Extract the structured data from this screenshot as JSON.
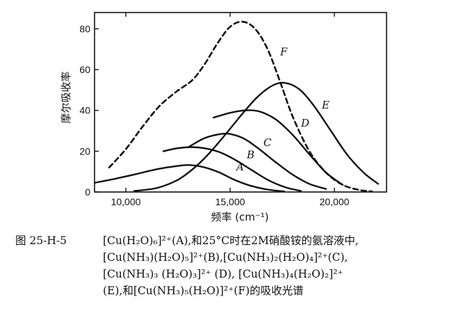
{
  "chart_data": {
    "type": "line",
    "ylabel": "摩尔吸收率",
    "xlabel": "频率 (cm⁻¹)",
    "xlim": [
      8500,
      22500
    ],
    "ylim": [
      0,
      88
    ],
    "xticks": [
      10000,
      15000,
      20000
    ],
    "xtick_labels": [
      "10,000",
      "15,000",
      "20,000"
    ],
    "yticks": [
      0,
      20,
      40,
      60,
      80
    ],
    "ytick_labels": [
      "0",
      "20",
      "40",
      "60",
      "80"
    ],
    "grid": false,
    "legend": "none",
    "series": [
      {
        "name": "A",
        "style": "solid",
        "x": [
          8500,
          9500,
          10500,
          11500,
          12500,
          13100,
          13800,
          14500,
          15200,
          16000,
          16800,
          17600
        ],
        "y": [
          4.5,
          6.5,
          8.8,
          11.2,
          12.8,
          13.2,
          12.0,
          9.5,
          6.0,
          3.0,
          1.2,
          0.3
        ],
        "label_x": 15300,
        "label_y": 10.5
      },
      {
        "name": "B",
        "style": "solid",
        "x": [
          11800,
          12500,
          13200,
          13900,
          14500,
          15200,
          16000,
          16800,
          17600,
          18400
        ],
        "y": [
          20.0,
          21.5,
          22.0,
          21.2,
          19.5,
          16.0,
          11.0,
          6.0,
          2.5,
          0.5
        ],
        "label_x": 15800,
        "label_y": 16.5
      },
      {
        "name": "C",
        "style": "solid",
        "x": [
          13000,
          13800,
          14600,
          15100,
          15700,
          16400,
          17200,
          18000,
          18800,
          19600
        ],
        "y": [
          22.0,
          26.5,
          28.5,
          28.2,
          26.0,
          21.0,
          14.5,
          8.5,
          4.0,
          1.5
        ],
        "label_x": 16600,
        "label_y": 22.5
      },
      {
        "name": "D",
        "style": "solid",
        "x": [
          14200,
          15000,
          15700,
          16400,
          17200,
          18000,
          18800,
          19600,
          20400
        ],
        "y": [
          36.5,
          38.8,
          40.0,
          39.5,
          35.5,
          28.0,
          18.5,
          9.5,
          3.5
        ],
        "label_x": 18400,
        "label_y": 32.0
      },
      {
        "name": "E",
        "style": "solid",
        "x": [
          10400,
          11500,
          12500,
          13300,
          14000,
          14800,
          15600,
          16300,
          17000,
          17600,
          18300,
          19000,
          19800,
          20600,
          21400,
          22100
        ],
        "y": [
          0.5,
          2.0,
          6.0,
          12.0,
          19.0,
          28.5,
          38.5,
          46.5,
          52.0,
          53.5,
          50.5,
          42.5,
          30.5,
          18.5,
          9.5,
          4.0
        ],
        "label_x": 19400,
        "label_y": 41.0
      },
      {
        "name": "F",
        "style": "dashed",
        "x": [
          9200,
          10000,
          10800,
          11600,
          12400,
          13200,
          13800,
          14400,
          15000,
          15600,
          16200,
          16800,
          17400,
          18000,
          18800,
          19600,
          20400,
          21200,
          21800
        ],
        "y": [
          12.0,
          21.0,
          32.0,
          42.0,
          49.0,
          55.0,
          63.0,
          73.0,
          81.0,
          83.5,
          80.0,
          70.0,
          54.0,
          37.0,
          20.0,
          9.5,
          3.5,
          1.0,
          0.3
        ],
        "label_x": 17400,
        "label_y": 67.0
      }
    ]
  },
  "caption": {
    "figure_label": "图 25-H-5",
    "lines": [
      "[Cu(H₂O)₆]²⁺(A),和25°C时在2M硝酸铵的氨溶液中,",
      "[Cu(NH₃)(H₂O)₅]²⁺(B),[Cu(NH₃)₂(H₂O)₄]²⁺(C),",
      "[Cu(NH₃)₃ (H₂O)₃]²⁺ (D),   [Cu(NH₃)₄(H₂O)₂]²⁺",
      "(E),和[Cu(NH₃)₅(H₂O)]²⁺(F)的吸收光谱"
    ]
  }
}
